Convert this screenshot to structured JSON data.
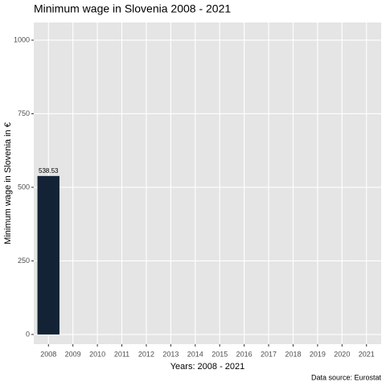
{
  "chart_data": {
    "type": "bar",
    "title": "Minimum wage in Slovenia 2008 - 2021",
    "x_label": "Years: 2008 - 2021",
    "y_label": "Minimum wage in Slovenia in €",
    "caption": "Data source: Eurostat",
    "categories": [
      "2008",
      "2009",
      "2010",
      "2011",
      "2012",
      "2013",
      "2014",
      "2015",
      "2016",
      "2017",
      "2018",
      "2019",
      "2020",
      "2021"
    ],
    "values": [
      538.53,
      null,
      null,
      null,
      null,
      null,
      null,
      null,
      null,
      null,
      null,
      null,
      null,
      null
    ],
    "color": "#132335",
    "ylim": [
      -33,
      1060
    ],
    "yticks": [
      0,
      250,
      500,
      750,
      1000
    ],
    "grid": true
  }
}
